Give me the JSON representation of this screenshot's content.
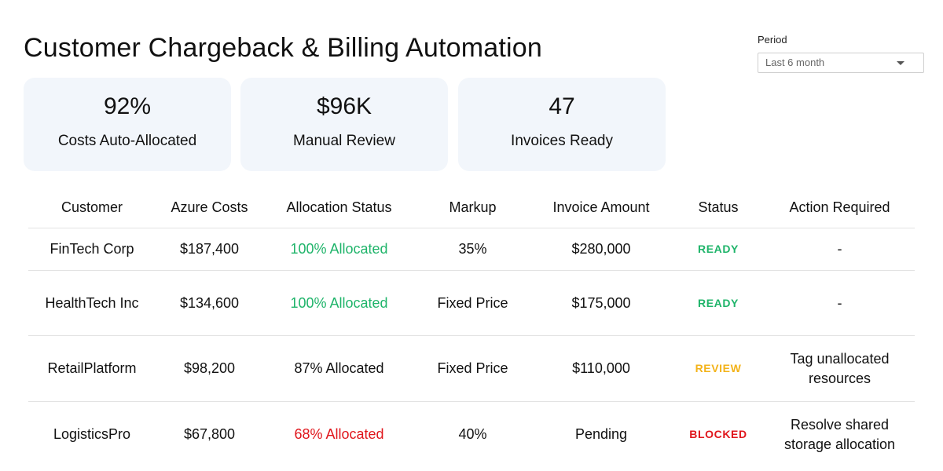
{
  "header": {
    "title": "Customer Chargeback & Billing Automation"
  },
  "period": {
    "label": "Period",
    "selected": "Last 6 month"
  },
  "kpis": [
    {
      "value": "92%",
      "label": "Costs Auto-Allocated"
    },
    {
      "value": "$96K",
      "label": "Manual Review"
    },
    {
      "value": "47",
      "label": "Invoices Ready"
    }
  ],
  "table": {
    "columns": [
      "Customer",
      "Azure Costs",
      "Allocation Status",
      "Markup",
      "Invoice Amount",
      "Status",
      "Action Required"
    ],
    "rows": [
      {
        "customer": "FinTech Corp",
        "azure_costs": "$187,400",
        "allocation": "100% Allocated",
        "allocation_state": "full",
        "markup": "35%",
        "invoice": "$280,000",
        "status": "READY",
        "action": "-"
      },
      {
        "customer": "HealthTech Inc",
        "azure_costs": "$134,600",
        "allocation": "100% Allocated",
        "allocation_state": "full",
        "markup": "Fixed Price",
        "invoice": "$175,000",
        "status": "READY",
        "action": "-"
      },
      {
        "customer": "RetailPlatform",
        "azure_costs": "$98,200",
        "allocation": "87% Allocated",
        "allocation_state": "partial",
        "markup": "Fixed Price",
        "invoice": "$110,000",
        "status": "REVIEW",
        "action": "Tag unallocated resources"
      },
      {
        "customer": "LogisticsPro",
        "azure_costs": "$67,800",
        "allocation": "68% Allocated",
        "allocation_state": "low",
        "markup": "40%",
        "invoice": "Pending",
        "status": "BLOCKED",
        "action": "Resolve shared storage allocation"
      }
    ]
  },
  "colors": {
    "allocated_full": "#1fb46a",
    "allocated_low": "#e0161c",
    "status_ready": "#1fb46a",
    "status_review": "#f3b31a",
    "status_blocked": "#e0161c",
    "card_background": "#f2f6fb"
  },
  "icons": {
    "period_dropdown": "chevron-down-icon"
  }
}
